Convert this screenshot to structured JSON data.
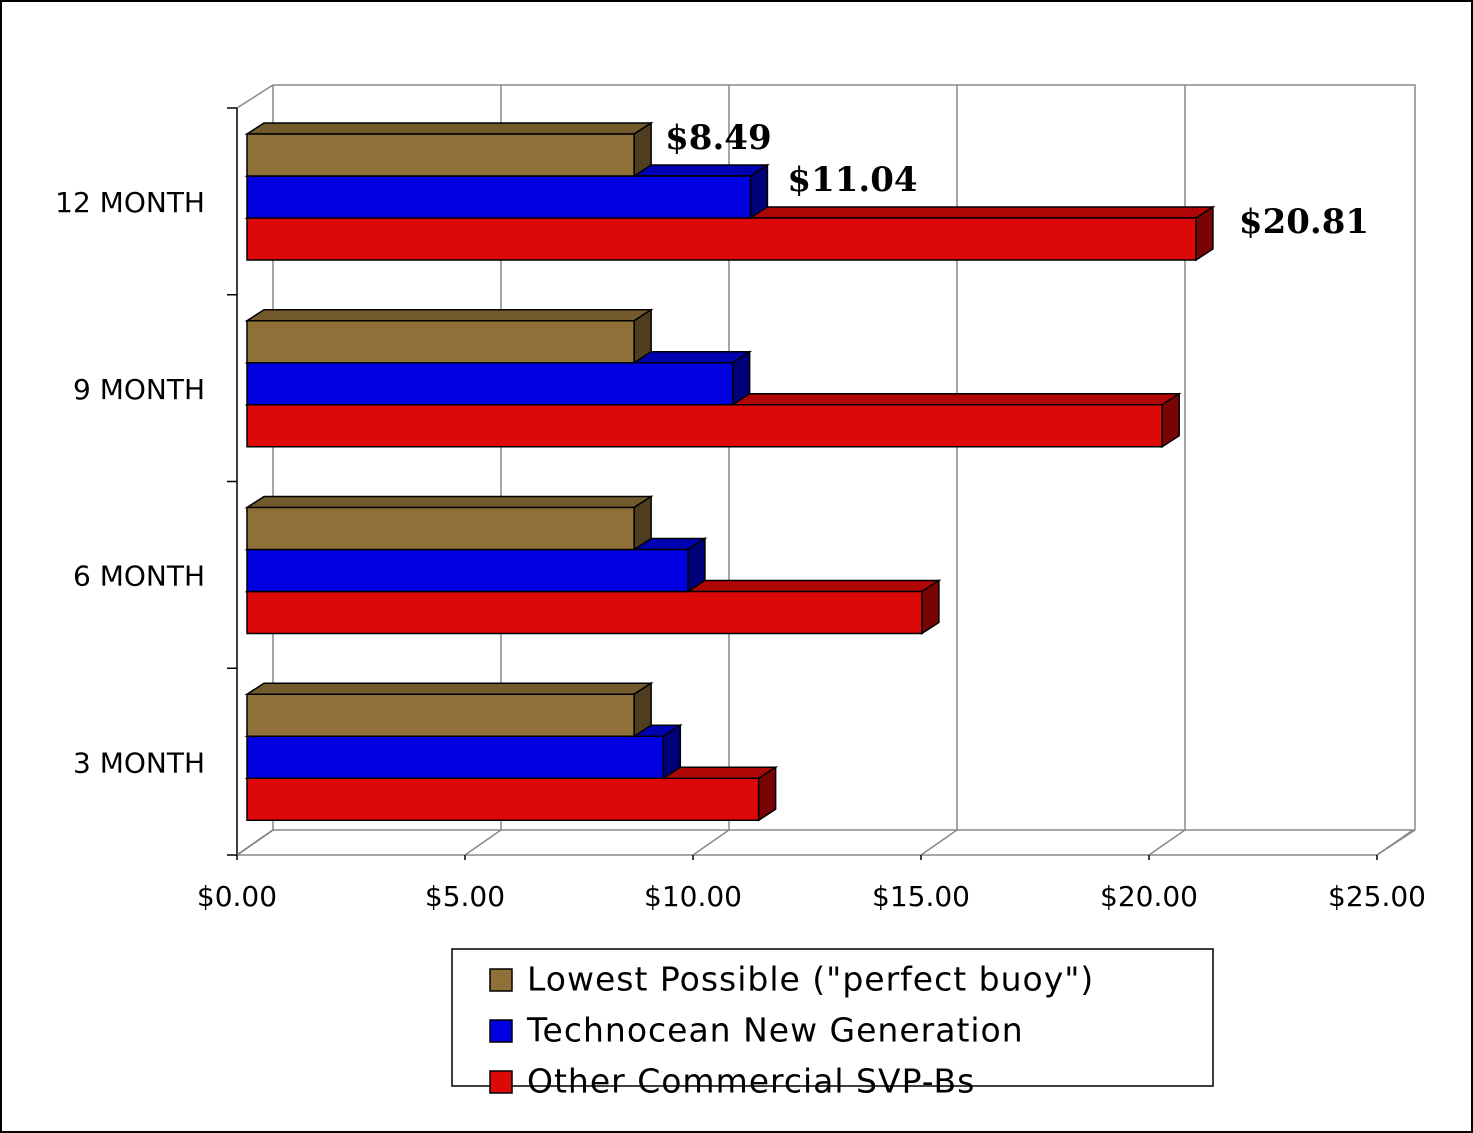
{
  "chart_data": {
    "type": "bar3d_horizontal",
    "categories": [
      "3 MONTH",
      "6 MONTH",
      "9 MONTH",
      "12 MONTH"
    ],
    "series": [
      {
        "name": "Lowest Possible (\"perfect buoy\")",
        "color": "#8f7038",
        "values": [
          8.49,
          8.49,
          8.49,
          8.49
        ],
        "value_labels": [
          null,
          null,
          null,
          "$8.49"
        ]
      },
      {
        "name": "Technocean New Generation",
        "color": "#0000e0",
        "values": [
          9.13,
          9.67,
          10.65,
          11.04
        ],
        "value_labels": [
          null,
          null,
          null,
          "$11.04"
        ]
      },
      {
        "name": "Other Commercial SVP-Bs",
        "color": "#dd0808",
        "values": [
          11.22,
          14.8,
          20.07,
          20.81
        ],
        "value_labels": [
          null,
          null,
          null,
          "$20.81"
        ]
      }
    ],
    "xlim": [
      0,
      25
    ],
    "xticks": [
      {
        "value": 0,
        "label": "$0.00"
      },
      {
        "value": 5,
        "label": "$5.00"
      },
      {
        "value": 10,
        "label": "$10.00"
      },
      {
        "value": 15,
        "label": "$15.00"
      },
      {
        "value": 20,
        "label": "$20.00"
      },
      {
        "value": 25,
        "label": "$25.00"
      }
    ],
    "grid": true,
    "legend": "bottom"
  }
}
